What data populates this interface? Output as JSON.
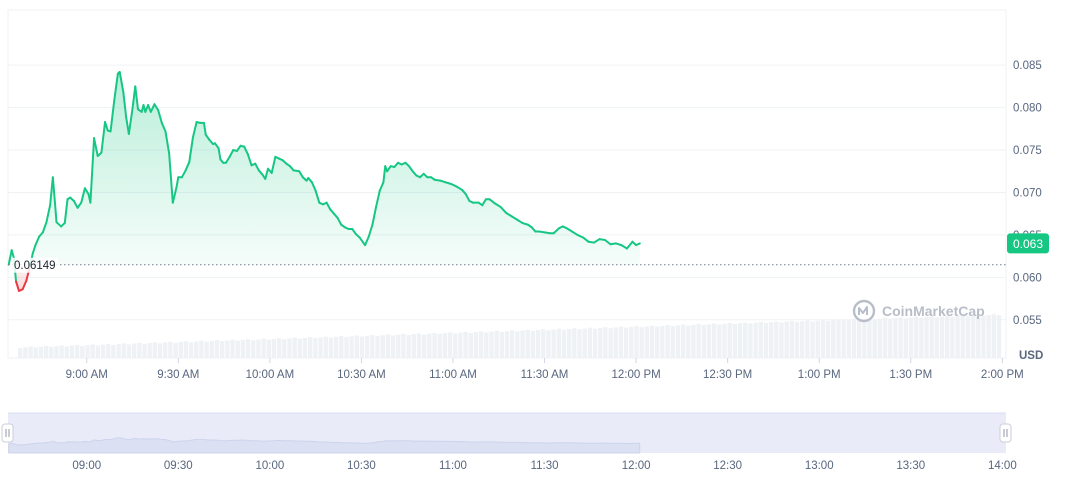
{
  "chart_data": {
    "type": "area",
    "currency": "USD",
    "baseline_value": 0.06149,
    "baseline_label": "0.06149",
    "current_price_label": "0.063",
    "watermark": "CoinMarketCap",
    "ylim": [
      0.0505,
      0.0915
    ],
    "y_ticks": [
      0.055,
      0.06,
      0.065,
      0.07,
      0.075,
      0.08,
      0.085
    ],
    "y_tick_labels": [
      "0.055",
      "0.060",
      "0.065",
      "0.070",
      "0.075",
      "0.080",
      "0.085"
    ],
    "x_range_hours": [
      8.57,
      14.02
    ],
    "x_ticks": [
      9,
      9.5,
      10,
      10.5,
      11,
      11.5,
      12,
      12.5,
      13,
      13.5,
      14
    ],
    "x_tick_labels": [
      "9:00 AM",
      "9:30 AM",
      "10:00 AM",
      "10:30 AM",
      "11:00 AM",
      "11:30 AM",
      "12:00 PM",
      "12:30 PM",
      "1:00 PM",
      "1:30 PM",
      "2:00 PM"
    ],
    "navigator_tick_labels": [
      "09:00",
      "09:30",
      "10:00",
      "10:30",
      "11:00",
      "11:30",
      "12:00",
      "12:30",
      "13:00",
      "13:30",
      "14:00"
    ],
    "colors": {
      "up": "#16c784",
      "down": "#ea3943",
      "volume": "#eff2f5",
      "navigator": "#e3e7f5"
    },
    "series": [
      {
        "values": [
          [
            8.574,
            0.0615
          ],
          [
            8.59,
            0.0632
          ],
          [
            8.602,
            0.0623
          ],
          [
            8.614,
            0.0595
          ],
          [
            8.63,
            0.0584
          ],
          [
            8.65,
            0.0586
          ],
          [
            8.67,
            0.0596
          ],
          [
            8.69,
            0.0613
          ],
          [
            8.705,
            0.0628
          ],
          [
            8.72,
            0.0638
          ],
          [
            8.74,
            0.0648
          ],
          [
            8.76,
            0.0653
          ],
          [
            8.78,
            0.0665
          ],
          [
            8.8,
            0.0685
          ],
          [
            8.815,
            0.0718
          ],
          [
            8.835,
            0.0665
          ],
          [
            8.86,
            0.066
          ],
          [
            8.88,
            0.0664
          ],
          [
            8.895,
            0.0692
          ],
          [
            8.91,
            0.0694
          ],
          [
            8.93,
            0.069
          ],
          [
            8.95,
            0.0682
          ],
          [
            8.97,
            0.0688
          ],
          [
            8.99,
            0.0705
          ],
          [
            9.01,
            0.0698
          ],
          [
            9.02,
            0.0688
          ],
          [
            9.04,
            0.0764
          ],
          [
            9.06,
            0.0743
          ],
          [
            9.08,
            0.0747
          ],
          [
            9.1,
            0.0783
          ],
          [
            9.115,
            0.0773
          ],
          [
            9.13,
            0.0772
          ],
          [
            9.15,
            0.0808
          ],
          [
            9.17,
            0.084
          ],
          [
            9.18,
            0.0842
          ],
          [
            9.2,
            0.0818
          ],
          [
            9.215,
            0.0789
          ],
          [
            9.23,
            0.0769
          ],
          [
            9.25,
            0.0799
          ],
          [
            9.265,
            0.0825
          ],
          [
            9.28,
            0.0798
          ],
          [
            9.3,
            0.0795
          ],
          [
            9.31,
            0.0803
          ],
          [
            9.32,
            0.0795
          ],
          [
            9.335,
            0.0803
          ],
          [
            9.35,
            0.0795
          ],
          [
            9.37,
            0.0804
          ],
          [
            9.39,
            0.0797
          ],
          [
            9.41,
            0.0782
          ],
          [
            9.43,
            0.0772
          ],
          [
            9.45,
            0.0746
          ],
          [
            9.47,
            0.0688
          ],
          [
            9.49,
            0.0706
          ],
          [
            9.5,
            0.0718
          ],
          [
            9.52,
            0.0718
          ],
          [
            9.54,
            0.0726
          ],
          [
            9.56,
            0.0736
          ],
          [
            9.58,
            0.0765
          ],
          [
            9.6,
            0.0783
          ],
          [
            9.62,
            0.0782
          ],
          [
            9.64,
            0.0782
          ],
          [
            9.65,
            0.0768
          ],
          [
            9.67,
            0.0762
          ],
          [
            9.69,
            0.0757
          ],
          [
            9.7,
            0.0758
          ],
          [
            9.72,
            0.0752
          ],
          [
            9.73,
            0.0739
          ],
          [
            9.745,
            0.0735
          ],
          [
            9.76,
            0.0735
          ],
          [
            9.78,
            0.0742
          ],
          [
            9.8,
            0.075
          ],
          [
            9.82,
            0.0749
          ],
          [
            9.84,
            0.0755
          ],
          [
            9.86,
            0.0754
          ],
          [
            9.88,
            0.0745
          ],
          [
            9.9,
            0.0732
          ],
          [
            9.92,
            0.0734
          ],
          [
            9.94,
            0.0726
          ],
          [
            9.96,
            0.0721
          ],
          [
            9.975,
            0.0716
          ],
          [
            9.99,
            0.0728
          ],
          [
            10.01,
            0.0723
          ],
          [
            10.03,
            0.0742
          ],
          [
            10.05,
            0.074
          ],
          [
            10.07,
            0.0738
          ],
          [
            10.09,
            0.0734
          ],
          [
            10.11,
            0.0731
          ],
          [
            10.13,
            0.0726
          ],
          [
            10.16,
            0.0725
          ],
          [
            10.18,
            0.0718
          ],
          [
            10.2,
            0.0714
          ],
          [
            10.21,
            0.0717
          ],
          [
            10.23,
            0.0712
          ],
          [
            10.25,
            0.0702
          ],
          [
            10.27,
            0.0688
          ],
          [
            10.29,
            0.0686
          ],
          [
            10.31,
            0.0688
          ],
          [
            10.33,
            0.068
          ],
          [
            10.35,
            0.0675
          ],
          [
            10.37,
            0.067
          ],
          [
            10.39,
            0.0662
          ],
          [
            10.41,
            0.0659
          ],
          [
            10.43,
            0.0657
          ],
          [
            10.45,
            0.0657
          ],
          [
            10.47,
            0.0651
          ],
          [
            10.49,
            0.0647
          ],
          [
            10.51,
            0.0641
          ],
          [
            10.52,
            0.0638
          ],
          [
            10.54,
            0.0648
          ],
          [
            10.56,
            0.0662
          ],
          [
            10.58,
            0.0683
          ],
          [
            10.6,
            0.0702
          ],
          [
            10.62,
            0.0712
          ],
          [
            10.63,
            0.0731
          ],
          [
            10.64,
            0.0725
          ],
          [
            10.66,
            0.0731
          ],
          [
            10.68,
            0.073
          ],
          [
            10.7,
            0.0735
          ],
          [
            10.72,
            0.0733
          ],
          [
            10.74,
            0.0735
          ],
          [
            10.76,
            0.0731
          ],
          [
            10.78,
            0.0725
          ],
          [
            10.8,
            0.072
          ],
          [
            10.82,
            0.0718
          ],
          [
            10.84,
            0.0722
          ],
          [
            10.86,
            0.0718
          ],
          [
            10.88,
            0.0718
          ],
          [
            10.9,
            0.0715
          ],
          [
            10.93,
            0.0714
          ],
          [
            10.96,
            0.0712
          ],
          [
            10.99,
            0.071
          ],
          [
            11.02,
            0.0707
          ],
          [
            11.05,
            0.0703
          ],
          [
            11.07,
            0.0698
          ],
          [
            11.09,
            0.069
          ],
          [
            11.11,
            0.0688
          ],
          [
            11.14,
            0.0688
          ],
          [
            11.16,
            0.0685
          ],
          [
            11.18,
            0.0692
          ],
          [
            11.2,
            0.0692
          ],
          [
            11.23,
            0.0687
          ],
          [
            11.26,
            0.0683
          ],
          [
            11.29,
            0.0676
          ],
          [
            11.32,
            0.0672
          ],
          [
            11.35,
            0.0668
          ],
          [
            11.38,
            0.0664
          ],
          [
            11.41,
            0.0662
          ],
          [
            11.43,
            0.0659
          ],
          [
            11.45,
            0.0654
          ],
          [
            11.47,
            0.0654
          ],
          [
            11.5,
            0.0653
          ],
          [
            11.53,
            0.0652
          ],
          [
            11.55,
            0.0652
          ],
          [
            11.58,
            0.0658
          ],
          [
            11.6,
            0.066
          ],
          [
            11.62,
            0.0658
          ],
          [
            11.65,
            0.0654
          ],
          [
            11.68,
            0.065
          ],
          [
            11.71,
            0.0647
          ],
          [
            11.74,
            0.0642
          ],
          [
            11.77,
            0.0641
          ],
          [
            11.8,
            0.0645
          ],
          [
            11.83,
            0.0644
          ],
          [
            11.86,
            0.0639
          ],
          [
            11.89,
            0.064
          ],
          [
            11.92,
            0.0638
          ],
          [
            11.95,
            0.0634
          ],
          [
            11.98,
            0.0642
          ],
          [
            12.0,
            0.0638
          ],
          [
            12.02,
            0.064
          ]
        ]
      }
    ]
  }
}
